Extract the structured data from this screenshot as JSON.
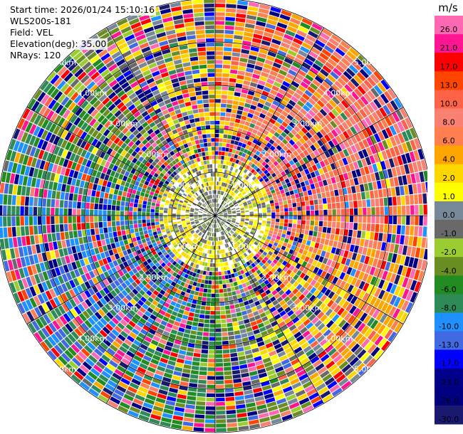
{
  "header": {
    "start_time": "Start time: 2026/01/24 15:10:16",
    "instrument": "WLS200s-181",
    "field": "Field: VEL",
    "elevation": "Elevation(deg): 35.00",
    "nrays": "NRays: 120"
  },
  "chart_data": {
    "type": "heatmap",
    "projection": "polar-ppi",
    "field": "VEL",
    "units": "m/s",
    "elevation_deg": 35.0,
    "n_rays": 120,
    "max_range_km": 5.0,
    "range_rings_km": [
      1,
      2,
      3,
      4,
      5
    ],
    "range_ring_labels": [
      "1.00km",
      "2.00km",
      "3.00km",
      "4.00km",
      "5.00km"
    ],
    "azimuth_spokes_deg": [
      0,
      30,
      60,
      90,
      120,
      150,
      180,
      210,
      240,
      270,
      300,
      330
    ],
    "colorbar": {
      "title": "m/s",
      "tick_labels": [
        "26.0",
        "21.0",
        "17.0",
        "13.0",
        "10.0",
        "8.0",
        "6.0",
        "4.0",
        "2.0",
        "1.0",
        "0.0",
        "-1.0",
        "-2.0",
        "-4.0",
        "-6.0",
        "-8.0",
        "-10.0",
        "-13.0",
        "-17.0",
        "-21.0",
        "-26.0",
        "-30.0"
      ],
      "bins": [
        {
          "min": -30,
          "max": -26,
          "color": "#191970"
        },
        {
          "min": -26,
          "max": -21,
          "color": "#000080"
        },
        {
          "min": -21,
          "max": -17,
          "color": "#00008b"
        },
        {
          "min": -17,
          "max": -13,
          "color": "#0000ff"
        },
        {
          "min": -13,
          "max": -10,
          "color": "#4169e1"
        },
        {
          "min": -10,
          "max": -8,
          "color": "#1e90ff"
        },
        {
          "min": -8,
          "max": -6,
          "color": "#2e8b57"
        },
        {
          "min": -6,
          "max": -4,
          "color": "#228b22"
        },
        {
          "min": -4,
          "max": -2,
          "color": "#6b8e23"
        },
        {
          "min": -2,
          "max": -1,
          "color": "#9acd32"
        },
        {
          "min": -1,
          "max": 0,
          "color": "#696969"
        },
        {
          "min": 0,
          "max": 1,
          "color": "#778899"
        },
        {
          "min": 1,
          "max": 2,
          "color": "#ffff00"
        },
        {
          "min": 2,
          "max": 4,
          "color": "#ffd700"
        },
        {
          "min": 4,
          "max": 6,
          "color": "#ffa500"
        },
        {
          "min": 6,
          "max": 8,
          "color": "#ff7f50"
        },
        {
          "min": 8,
          "max": 10,
          "color": "#fa8072"
        },
        {
          "min": 10,
          "max": 13,
          "color": "#ff6347"
        },
        {
          "min": 13,
          "max": 17,
          "color": "#ff4500"
        },
        {
          "min": 17,
          "max": 21,
          "color": "#ff0000"
        },
        {
          "min": 21,
          "max": 26,
          "color": "#ff1493"
        },
        {
          "min": 26,
          "max": 30,
          "color": "#ff69b4"
        }
      ]
    }
  }
}
